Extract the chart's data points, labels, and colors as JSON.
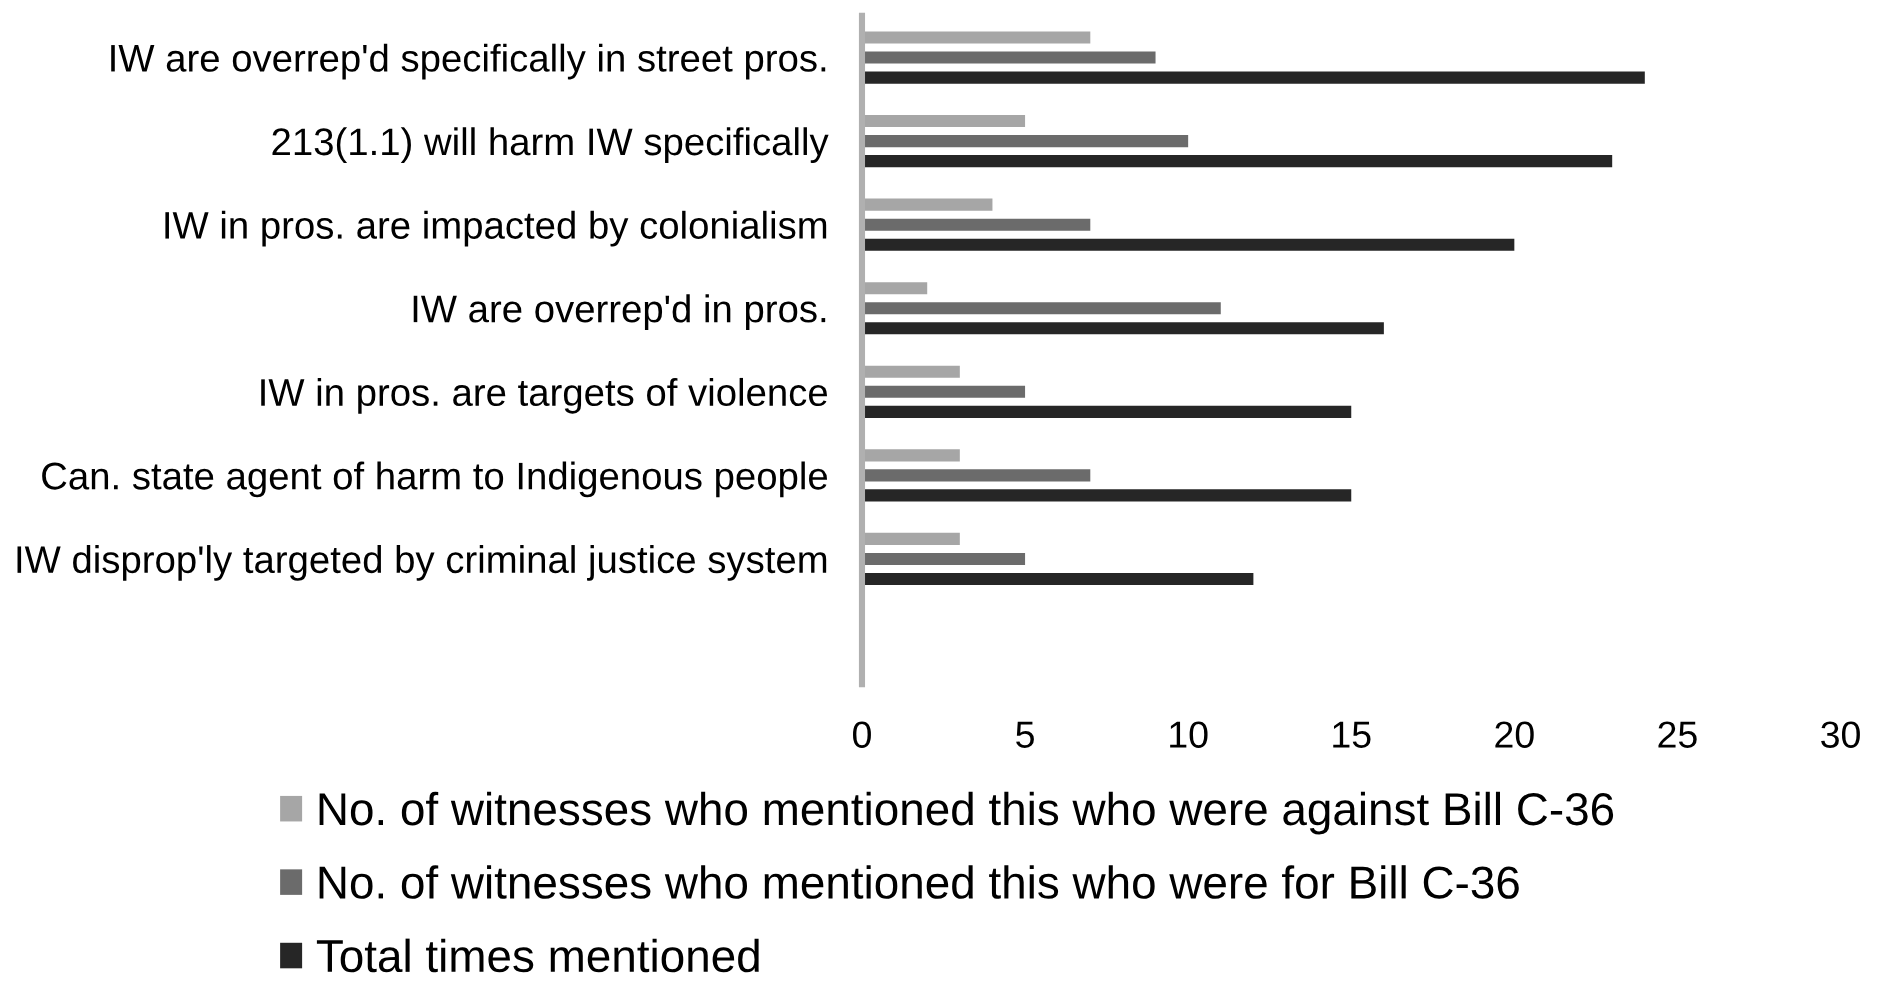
{
  "chart_data": {
    "type": "bar",
    "orientation": "horizontal",
    "categories": [
      "IW are overrep'd specifically in street pros.",
      "213(1.1) will harm IW specifically",
      "IW in pros. are impacted by colonialism",
      "IW are overrep'd in pros.",
      "IW in pros. are targets of violence",
      "Can. state agent of harm to Indigenous people",
      "IW disprop'ly targeted by criminal justice system",
      null
    ],
    "series": [
      {
        "name": "No. of witnesses who mentioned this who were against Bill C-36",
        "color": "#a6a6a6",
        "values": [
          7,
          5,
          4,
          2,
          3,
          3,
          3,
          null
        ]
      },
      {
        "name": "No. of witnesses who mentioned this who were for Bill C-36",
        "color": "#6b6b6b",
        "values": [
          9,
          10,
          7,
          11,
          5,
          7,
          5,
          null
        ]
      },
      {
        "name": "Total times mentioned",
        "color": "#262626",
        "values": [
          24,
          23,
          20,
          16,
          15,
          15,
          12,
          null
        ]
      }
    ],
    "xlim": [
      0,
      30
    ],
    "xticks": [
      0,
      5,
      10,
      15,
      20,
      25,
      30
    ],
    "grid": false,
    "legend": "bottom"
  }
}
